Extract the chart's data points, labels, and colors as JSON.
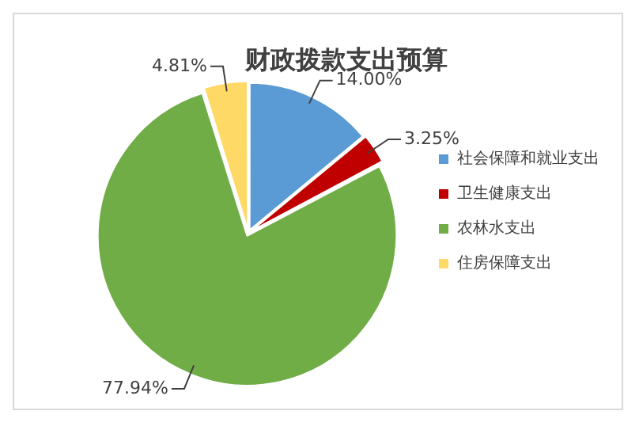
{
  "chart_data": {
    "type": "pie",
    "title": "财政拨款支出预算",
    "categories": [
      "社会保障和就业支出",
      "卫生健康支出",
      "农林水支出",
      "住房保障支出"
    ],
    "values": [
      14.0,
      3.25,
      77.94,
      4.81
    ],
    "colors": [
      "#5b9bd5",
      "#c00000",
      "#70ad47",
      "#ffd966"
    ],
    "value_labels": [
      "14.00%",
      "3.25%",
      "77.94%",
      "4.81%"
    ],
    "legend": "right"
  }
}
